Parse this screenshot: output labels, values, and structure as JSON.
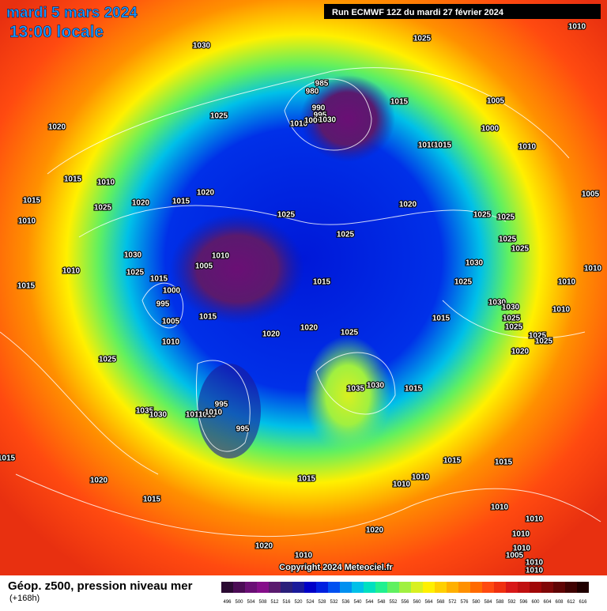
{
  "header": {
    "title": "mardi 5 mars 2024",
    "time": "13:00 locale",
    "run": "Run ECMWF 12Z du mardi 27 février 2024"
  },
  "footer": {
    "copyright": "Copyright 2024 Meteociel.fr",
    "caption": "Géop. z500, pression niveau mer",
    "lead": "(+168h)"
  },
  "legend": {
    "items": [
      {
        "value": 496,
        "color": "#2b0a33"
      },
      {
        "value": 500,
        "color": "#4b0c55"
      },
      {
        "value": 504,
        "color": "#6a0f75"
      },
      {
        "value": 508,
        "color": "#850e8a"
      },
      {
        "value": 512,
        "color": "#5a1a6e"
      },
      {
        "value": 516,
        "color": "#2a1f7a"
      },
      {
        "value": 520,
        "color": "#1a1a9a"
      },
      {
        "value": 524,
        "color": "#0000c8"
      },
      {
        "value": 528,
        "color": "#0020e0"
      },
      {
        "value": 532,
        "color": "#0050f0"
      },
      {
        "value": 536,
        "color": "#0090f0"
      },
      {
        "value": 540,
        "color": "#00c0e8"
      },
      {
        "value": 544,
        "color": "#00e0c0"
      },
      {
        "value": 548,
        "color": "#20f090"
      },
      {
        "value": 552,
        "color": "#60f060"
      },
      {
        "value": 556,
        "color": "#a0f040"
      },
      {
        "value": 560,
        "color": "#d8f020"
      },
      {
        "value": 564,
        "color": "#fff000"
      },
      {
        "value": 568,
        "color": "#ffd000"
      },
      {
        "value": 572,
        "color": "#ffb000"
      },
      {
        "value": 576,
        "color": "#ff9000"
      },
      {
        "value": 580,
        "color": "#ff6a00"
      },
      {
        "value": 584,
        "color": "#ff4a10"
      },
      {
        "value": 588,
        "color": "#f03010"
      },
      {
        "value": 592,
        "color": "#d81818"
      },
      {
        "value": 596,
        "color": "#c01010"
      },
      {
        "value": 600,
        "color": "#a00808"
      },
      {
        "value": 604,
        "color": "#800808"
      },
      {
        "value": 608,
        "color": "#600505"
      },
      {
        "value": 612,
        "color": "#400303"
      },
      {
        "value": 616,
        "color": "#200000"
      }
    ]
  },
  "pressure_labels": [
    1030,
    1025,
    1010,
    1020,
    1025,
    985,
    980,
    990,
    995,
    1010,
    1005,
    1030,
    1015,
    1005,
    1000,
    1010,
    1015,
    1010,
    1015,
    1010,
    1015,
    1025,
    1020,
    1020,
    1015,
    1025,
    1020,
    1025,
    1025,
    1005,
    1010,
    1030,
    1010,
    1005,
    1025,
    1025,
    1025,
    1030,
    1010,
    1025,
    1015,
    1000,
    995,
    1025,
    1015,
    1010,
    1010,
    1015,
    1005,
    1015,
    1030,
    1030,
    1010,
    1025,
    1020,
    1020,
    1025,
    1015,
    1025,
    1010,
    1025,
    1025,
    1020,
    1025,
    1035,
    1030,
    1015,
    995,
    1035,
    1030,
    1010,
    1015,
    1010,
    995,
    1015,
    1015,
    1015,
    1015,
    1010,
    1010,
    1020,
    1015,
    1010,
    1010,
    1020,
    1010,
    1020,
    1010,
    1010,
    1005,
    1010,
    1010
  ]
}
